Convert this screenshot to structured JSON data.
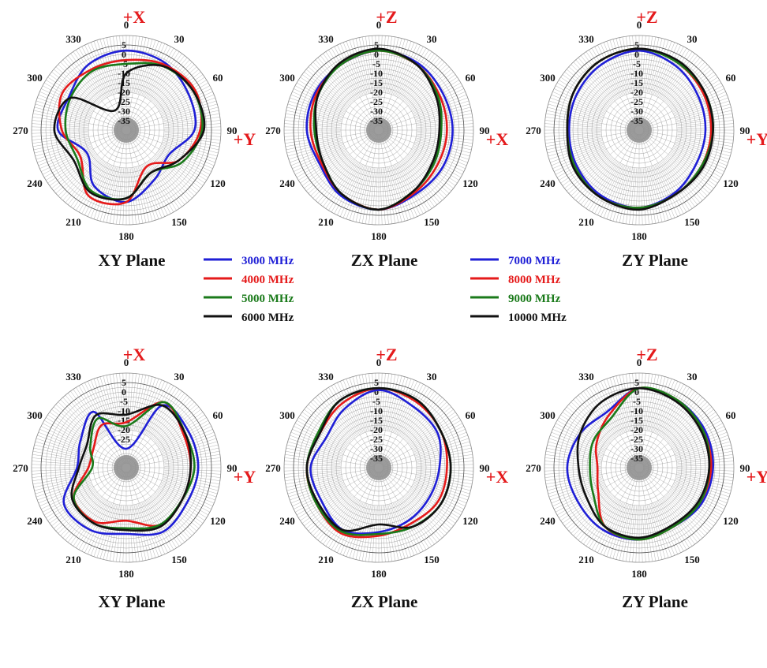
{
  "colors": {
    "f3000": "#1f1fd6",
    "f4000": "#e51a1a",
    "f5000": "#1a7a1a",
    "f6000": "#111111",
    "axis": "#e41a1c",
    "grid": "#8a8a8a",
    "text": "#111111"
  },
  "legends": [
    [
      {
        "label": "3000 MHz",
        "color": "#1f1fd6"
      },
      {
        "label": "4000 MHz",
        "color": "#e51a1a"
      },
      {
        "label": "5000 MHz",
        "color": "#1a7a1a"
      },
      {
        "label": "6000 MHz",
        "color": "#111111"
      }
    ],
    [
      {
        "label": "7000 MHz",
        "color": "#1f1fd6"
      },
      {
        "label": "8000 MHz",
        "color": "#e51a1a"
      },
      {
        "label": "9000 MHz",
        "color": "#1a7a1a"
      },
      {
        "label": "10000 MHz",
        "color": "#111111"
      }
    ]
  ],
  "chart_data": [
    {
      "type": "polar-line",
      "title": "XY Plane",
      "top_axis_label": "+X",
      "right_axis_label": "+Y",
      "angle_ticks": [
        "0",
        "30",
        "60",
        "90",
        "120",
        "150",
        "180",
        "210",
        "240",
        "270",
        "300",
        "330"
      ],
      "radial_ticks": [
        "5",
        "0",
        "-5",
        "-10",
        "-15",
        "-20",
        "-25",
        "-30",
        "-35"
      ],
      "r_range": [
        -40,
        5
      ],
      "series": [
        {
          "name": "3000 MHz",
          "angles": [
            0,
            30,
            60,
            90,
            120,
            150,
            180,
            210,
            240,
            270,
            300,
            330
          ],
          "values": [
            2,
            1,
            -2,
            -4,
            -14,
            -10,
            -2,
            -6,
            -16,
            -4,
            -5,
            0
          ]
        },
        {
          "name": "4000 MHz",
          "angles": [
            0,
            30,
            60,
            90,
            120,
            150,
            180,
            210,
            240,
            270,
            300,
            330
          ],
          "values": [
            -3,
            0,
            2,
            -1,
            -8,
            -18,
            -2,
            0,
            -12,
            -6,
            -1,
            -3
          ]
        },
        {
          "name": "5000 MHz",
          "angles": [
            0,
            30,
            60,
            90,
            120,
            150,
            180,
            210,
            240,
            270,
            300,
            330
          ],
          "values": [
            -5,
            -1,
            1,
            0,
            -6,
            -14,
            -4,
            -3,
            -10,
            -8,
            -6,
            -4
          ]
        },
        {
          "name": "6000 MHz",
          "angles": [
            0,
            30,
            60,
            90,
            120,
            150,
            180,
            210,
            240,
            270,
            300,
            330
          ],
          "values": [
            -10,
            -1,
            1,
            1,
            -8,
            -14,
            -4,
            -2,
            -8,
            -2,
            -6,
            -28
          ]
        }
      ]
    },
    {
      "type": "polar-line",
      "title": "ZX Plane",
      "top_axis_label": "+Z",
      "right_axis_label": "+X",
      "angle_ticks": [
        "0",
        "30",
        "60",
        "90",
        "120",
        "150",
        "180",
        "210",
        "240",
        "270",
        "300",
        "330"
      ],
      "radial_ticks": [
        "5",
        "0",
        "-5",
        "-10",
        "-15",
        "-20",
        "-25",
        "-30",
        "-35"
      ],
      "r_range": [
        -40,
        5
      ],
      "series": [
        {
          "name": "3000 MHz",
          "angles": [
            0,
            30,
            60,
            90,
            120,
            150,
            180,
            210,
            240,
            270,
            300,
            330
          ],
          "values": [
            2,
            1,
            -1,
            -1,
            -1,
            -1,
            2,
            0,
            -4,
            -2,
            -1,
            0
          ]
        },
        {
          "name": "4000 MHz",
          "angles": [
            0,
            30,
            60,
            90,
            120,
            150,
            180,
            210,
            240,
            270,
            300,
            330
          ],
          "values": [
            2,
            0,
            -3,
            -4,
            -4,
            -2,
            2,
            -1,
            -5,
            -4,
            -2,
            0
          ]
        },
        {
          "name": "5000 MHz",
          "angles": [
            0,
            30,
            60,
            90,
            120,
            150,
            180,
            210,
            240,
            270,
            300,
            330
          ],
          "values": [
            2,
            0,
            -4,
            -7,
            -6,
            -3,
            2,
            -1,
            -6,
            -6,
            -3,
            0
          ]
        },
        {
          "name": "6000 MHz",
          "angles": [
            0,
            30,
            60,
            90,
            120,
            150,
            180,
            210,
            240,
            270,
            300,
            330
          ],
          "values": [
            3,
            0,
            -5,
            -8,
            -7,
            -3,
            2,
            -1,
            -6,
            -7,
            -3,
            1
          ]
        }
      ]
    },
    {
      "type": "polar-line",
      "title": "ZY Plane",
      "top_axis_label": "+Z",
      "right_axis_label": "+Y",
      "angle_ticks": [
        "0",
        "30",
        "60",
        "90",
        "120",
        "150",
        "180",
        "210",
        "240",
        "270",
        "300",
        "330"
      ],
      "radial_ticks": [
        "5",
        "0",
        "-5",
        "-10",
        "-15",
        "-20",
        "-25",
        "-30",
        "-35"
      ],
      "r_range": [
        -40,
        5
      ],
      "series": [
        {
          "name": "3000 MHz",
          "angles": [
            0,
            30,
            60,
            90,
            120,
            150,
            180,
            210,
            240,
            270,
            300,
            330
          ],
          "values": [
            2,
            -1,
            -4,
            -5,
            -5,
            -2,
            1,
            0,
            -2,
            -3,
            -2,
            0
          ]
        },
        {
          "name": "4000 MHz",
          "angles": [
            0,
            30,
            60,
            90,
            120,
            150,
            180,
            210,
            240,
            270,
            300,
            330
          ],
          "values": [
            3,
            1,
            -1,
            -2,
            -2,
            -1,
            1,
            1,
            -1,
            -2,
            0,
            2
          ]
        },
        {
          "name": "5000 MHz",
          "angles": [
            0,
            30,
            60,
            90,
            120,
            150,
            180,
            210,
            240,
            270,
            300,
            330
          ],
          "values": [
            3,
            1,
            0,
            -1,
            -2,
            -1,
            1,
            1,
            -1,
            -2,
            0,
            2
          ]
        },
        {
          "name": "6000 MHz",
          "angles": [
            0,
            30,
            60,
            90,
            120,
            150,
            180,
            210,
            240,
            270,
            300,
            330
          ],
          "values": [
            3,
            2,
            0,
            -1,
            -1,
            -1,
            2,
            1,
            0,
            -2,
            0,
            2
          ]
        }
      ]
    },
    {
      "type": "polar-line",
      "title": "XY Plane",
      "top_axis_label": "+X",
      "right_axis_label": "+Y",
      "angle_ticks": [
        "0",
        "30",
        "60",
        "90",
        "120",
        "150",
        "180",
        "210",
        "240",
        "270",
        "300",
        "330"
      ],
      "radial_ticks": [
        "5",
        "0",
        "-5",
        "-10",
        "-15",
        "-20",
        "-25"
      ],
      "r_range": [
        -40,
        5
      ],
      "series": [
        {
          "name": "7000 MHz",
          "angles": [
            0,
            30,
            60,
            90,
            120,
            150,
            180,
            210,
            240,
            270,
            300,
            330
          ],
          "values": [
            -30,
            -2,
            -2,
            -2,
            -3,
            -1,
            -5,
            -2,
            -2,
            -14,
            -12,
            -6
          ]
        },
        {
          "name": "8000 MHz",
          "angles": [
            0,
            30,
            60,
            90,
            120,
            150,
            180,
            210,
            240,
            270,
            300,
            330
          ],
          "values": [
            -16,
            0,
            -5,
            -6,
            -6,
            -5,
            -12,
            -7,
            -8,
            -20,
            -20,
            -14
          ]
        },
        {
          "name": "9000 MHz",
          "angles": [
            0,
            30,
            60,
            90,
            120,
            150,
            180,
            210,
            240,
            270,
            300,
            330
          ],
          "values": [
            -18,
            0,
            -4,
            -4,
            -6,
            -5,
            -8,
            -6,
            -8,
            -22,
            -18,
            -10
          ]
        },
        {
          "name": "10000 MHz",
          "angles": [
            0,
            30,
            60,
            90,
            120,
            150,
            180,
            210,
            240,
            270,
            300,
            330
          ],
          "values": [
            -12,
            -2,
            -4,
            -6,
            -6,
            -4,
            -7,
            -6,
            -7,
            -15,
            -16,
            -8
          ]
        }
      ]
    },
    {
      "type": "polar-line",
      "title": "ZX Plane",
      "top_axis_label": "+Z",
      "right_axis_label": "+X",
      "angle_ticks": [
        "0",
        "30",
        "60",
        "90",
        "120",
        "150",
        "180",
        "210",
        "240",
        "270",
        "300",
        "330"
      ],
      "radial_ticks": [
        "5",
        "0",
        "-5",
        "-10",
        "-15",
        "-20",
        "-25",
        "-30",
        "-35"
      ],
      "r_range": [
        -40,
        5
      ],
      "series": [
        {
          "name": "7000 MHz",
          "angles": [
            0,
            30,
            60,
            90,
            120,
            150,
            180,
            210,
            240,
            270,
            300,
            330
          ],
          "values": [
            1,
            -3,
            -4,
            -8,
            -9,
            -8,
            -6,
            -2,
            -5,
            -4,
            -8,
            -4
          ]
        },
        {
          "name": "8000 MHz",
          "angles": [
            0,
            30,
            60,
            90,
            120,
            150,
            180,
            210,
            240,
            270,
            300,
            330
          ],
          "values": [
            2,
            0,
            -2,
            -4,
            -4,
            -6,
            -4,
            0,
            -2,
            -2,
            -4,
            -1
          ]
        },
        {
          "name": "9000 MHz",
          "angles": [
            0,
            30,
            60,
            90,
            120,
            150,
            180,
            210,
            240,
            270,
            300,
            330
          ],
          "values": [
            2,
            1,
            -2,
            -2,
            -2,
            -4,
            -5,
            -1,
            -2,
            -2,
            -3,
            1
          ]
        },
        {
          "name": "10000 MHz",
          "angles": [
            0,
            30,
            60,
            90,
            120,
            150,
            180,
            210,
            240,
            270,
            300,
            330
          ],
          "values": [
            2,
            1,
            -2,
            -2,
            -2,
            -4,
            -10,
            -2,
            -3,
            -2,
            -4,
            1
          ]
        }
      ]
    },
    {
      "type": "polar-line",
      "title": "ZY Plane",
      "top_axis_label": "+Z",
      "right_axis_label": "+Y",
      "angle_ticks": [
        "0",
        "30",
        "60",
        "90",
        "120",
        "150",
        "180",
        "210",
        "240",
        "270",
        "300",
        "330"
      ],
      "radial_ticks": [
        "5",
        "0",
        "-5",
        "-10",
        "-15",
        "-20",
        "-25",
        "-30",
        "-35"
      ],
      "r_range": [
        -40,
        5
      ],
      "series": [
        {
          "name": "7000 MHz",
          "angles": [
            0,
            30,
            60,
            90,
            120,
            150,
            180,
            210,
            240,
            270,
            300,
            330
          ],
          "values": [
            2,
            1,
            0,
            -1,
            -2,
            -4,
            -2,
            -2,
            -3,
            -2,
            -4,
            -6
          ]
        },
        {
          "name": "8000 MHz",
          "angles": [
            0,
            30,
            60,
            90,
            120,
            150,
            180,
            210,
            240,
            270,
            300,
            330
          ],
          "values": [
            2,
            1,
            -1,
            -2,
            -3,
            -4,
            -2,
            -4,
            -15,
            -18,
            -14,
            -8
          ]
        },
        {
          "name": "9000 MHz",
          "angles": [
            0,
            30,
            60,
            90,
            120,
            150,
            180,
            210,
            240,
            270,
            300,
            330
          ],
          "values": [
            2,
            1,
            -1,
            -3,
            -3,
            -4,
            -2,
            -4,
            -12,
            -14,
            -12,
            -10
          ]
        },
        {
          "name": "10000 MHz",
          "angles": [
            0,
            30,
            60,
            90,
            120,
            150,
            180,
            210,
            240,
            270,
            300,
            330
          ],
          "values": [
            2,
            0,
            -2,
            -3,
            -4,
            -5,
            -3,
            -4,
            -8,
            -8,
            -4,
            0
          ]
        }
      ]
    }
  ]
}
